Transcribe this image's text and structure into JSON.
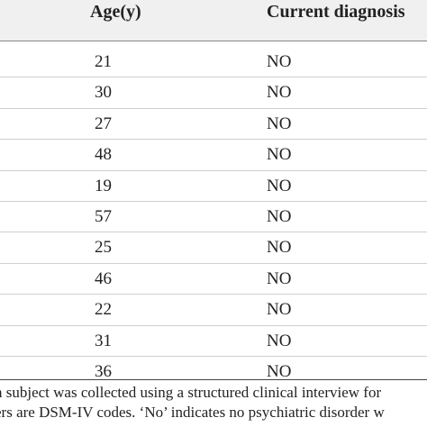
{
  "table": {
    "headers": {
      "age": "Age(y)",
      "diagnosis": "Current diagnosis"
    },
    "rows": [
      {
        "age": "21",
        "diagnosis": "NO"
      },
      {
        "age": "30",
        "diagnosis": "NO"
      },
      {
        "age": "27",
        "diagnosis": "NO"
      },
      {
        "age": "48",
        "diagnosis": "NO"
      },
      {
        "age": "19",
        "diagnosis": "NO"
      },
      {
        "age": "57",
        "diagnosis": "NO"
      },
      {
        "age": "25",
        "diagnosis": "NO"
      },
      {
        "age": "46",
        "diagnosis": "NO"
      },
      {
        "age": "22",
        "diagnosis": "NO"
      },
      {
        "age": "31",
        "diagnosis": "NO"
      },
      {
        "age": "36",
        "diagnosis": "NO"
      }
    ]
  },
  "footnote": {
    "line1": "n subject was collected using a structured clinical interview for",
    "line2": "ers are DSM-IV codes. ‘No’ indicates no psychiatric disorder w"
  },
  "colors": {
    "header_background": "#f0f0f0",
    "text": "#222222"
  }
}
